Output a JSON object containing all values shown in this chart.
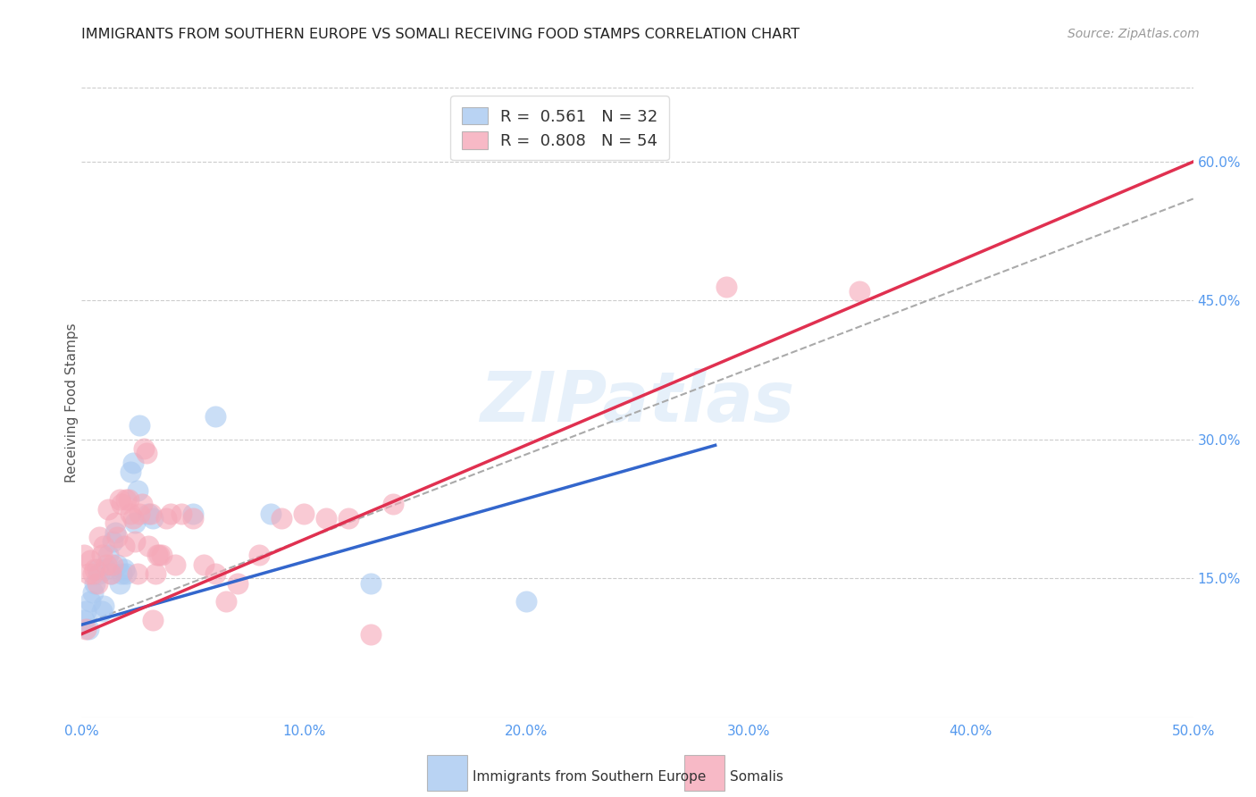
{
  "title": "IMMIGRANTS FROM SOUTHERN EUROPE VS SOMALI RECEIVING FOOD STAMPS CORRELATION CHART",
  "source": "Source: ZipAtlas.com",
  "ylabel": "Receiving Food Stamps",
  "xlim": [
    0.0,
    0.5
  ],
  "ylim": [
    0.0,
    0.68
  ],
  "xtick_vals": [
    0.0,
    0.1,
    0.2,
    0.3,
    0.4,
    0.5
  ],
  "xtick_labels": [
    "0.0%",
    "10.0%",
    "20.0%",
    "30.0%",
    "40.0%",
    "50.0%"
  ],
  "ytick_vals": [
    0.15,
    0.3,
    0.45,
    0.6
  ],
  "ytick_labels": [
    "15.0%",
    "30.0%",
    "45.0%",
    "60.0%"
  ],
  "blue_color": "#a8c8f0",
  "pink_color": "#f5a8b8",
  "blue_line_color": "#3366cc",
  "pink_line_color": "#e03050",
  "dashed_line_color": "#aaaaaa",
  "legend_R_blue": "0.561",
  "legend_N_blue": "32",
  "legend_R_pink": "0.808",
  "legend_N_pink": "54",
  "legend_label_blue": "Immigrants from Southern Europe",
  "legend_label_pink": "Somalis",
  "watermark": "ZIPatlas",
  "blue_points": [
    [
      0.001,
      0.105
    ],
    [
      0.002,
      0.115
    ],
    [
      0.003,
      0.095
    ],
    [
      0.004,
      0.125
    ],
    [
      0.005,
      0.135
    ],
    [
      0.006,
      0.145
    ],
    [
      0.007,
      0.16
    ],
    [
      0.008,
      0.155
    ],
    [
      0.009,
      0.115
    ],
    [
      0.01,
      0.12
    ],
    [
      0.011,
      0.16
    ],
    [
      0.012,
      0.175
    ],
    [
      0.013,
      0.155
    ],
    [
      0.014,
      0.19
    ],
    [
      0.015,
      0.2
    ],
    [
      0.016,
      0.165
    ],
    [
      0.017,
      0.145
    ],
    [
      0.018,
      0.155
    ],
    [
      0.019,
      0.16
    ],
    [
      0.02,
      0.155
    ],
    [
      0.022,
      0.265
    ],
    [
      0.023,
      0.275
    ],
    [
      0.024,
      0.21
    ],
    [
      0.025,
      0.245
    ],
    [
      0.026,
      0.315
    ],
    [
      0.03,
      0.22
    ],
    [
      0.032,
      0.215
    ],
    [
      0.05,
      0.22
    ],
    [
      0.06,
      0.325
    ],
    [
      0.085,
      0.22
    ],
    [
      0.13,
      0.145
    ],
    [
      0.2,
      0.125
    ]
  ],
  "pink_points": [
    [
      0.001,
      0.175
    ],
    [
      0.002,
      0.095
    ],
    [
      0.003,
      0.155
    ],
    [
      0.004,
      0.17
    ],
    [
      0.005,
      0.155
    ],
    [
      0.006,
      0.16
    ],
    [
      0.007,
      0.145
    ],
    [
      0.008,
      0.195
    ],
    [
      0.009,
      0.175
    ],
    [
      0.01,
      0.185
    ],
    [
      0.011,
      0.165
    ],
    [
      0.012,
      0.225
    ],
    [
      0.013,
      0.155
    ],
    [
      0.014,
      0.165
    ],
    [
      0.015,
      0.21
    ],
    [
      0.016,
      0.195
    ],
    [
      0.017,
      0.235
    ],
    [
      0.018,
      0.23
    ],
    [
      0.019,
      0.185
    ],
    [
      0.02,
      0.235
    ],
    [
      0.021,
      0.235
    ],
    [
      0.022,
      0.22
    ],
    [
      0.023,
      0.215
    ],
    [
      0.024,
      0.19
    ],
    [
      0.025,
      0.155
    ],
    [
      0.026,
      0.22
    ],
    [
      0.027,
      0.23
    ],
    [
      0.028,
      0.29
    ],
    [
      0.029,
      0.285
    ],
    [
      0.03,
      0.185
    ],
    [
      0.031,
      0.22
    ],
    [
      0.032,
      0.105
    ],
    [
      0.033,
      0.155
    ],
    [
      0.034,
      0.175
    ],
    [
      0.035,
      0.175
    ],
    [
      0.036,
      0.175
    ],
    [
      0.038,
      0.215
    ],
    [
      0.04,
      0.22
    ],
    [
      0.042,
      0.165
    ],
    [
      0.045,
      0.22
    ],
    [
      0.05,
      0.215
    ],
    [
      0.055,
      0.165
    ],
    [
      0.06,
      0.155
    ],
    [
      0.065,
      0.125
    ],
    [
      0.07,
      0.145
    ],
    [
      0.08,
      0.175
    ],
    [
      0.09,
      0.215
    ],
    [
      0.1,
      0.22
    ],
    [
      0.11,
      0.215
    ],
    [
      0.12,
      0.215
    ],
    [
      0.13,
      0.09
    ],
    [
      0.14,
      0.23
    ],
    [
      0.29,
      0.465
    ],
    [
      0.35,
      0.46
    ]
  ]
}
